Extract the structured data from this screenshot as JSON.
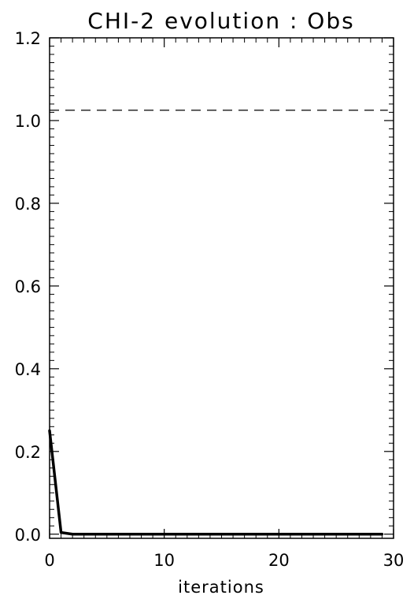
{
  "chart_data": {
    "type": "line",
    "title": "CHI-2 evolution : Obs",
    "xlabel": "iterations",
    "ylabel": "",
    "xlim": [
      0,
      30
    ],
    "ylim": [
      -0.01,
      1.2
    ],
    "x_ticks": [
      0,
      10,
      20,
      30
    ],
    "x_tick_labels": [
      "0",
      "10",
      "20",
      "30"
    ],
    "y_ticks": [
      0.0,
      0.2,
      0.4,
      0.6,
      0.8,
      1.0,
      1.2
    ],
    "y_tick_labels": [
      "0.0",
      "0.2",
      "0.4",
      "0.6",
      "0.8",
      "1.0",
      "1.2"
    ],
    "grid": false,
    "series": [
      {
        "style": "solid",
        "x": [
          0,
          1,
          2,
          3,
          4,
          5,
          6,
          7,
          8,
          9,
          10,
          11,
          12,
          13,
          14,
          15,
          16,
          17,
          18,
          19,
          20,
          21,
          22,
          23,
          24,
          25,
          26,
          27,
          28,
          29
        ],
        "y": [
          0.25,
          0.004,
          0.0,
          0.0,
          0.0,
          0.0,
          0.0,
          0.0,
          0.0,
          0.0,
          0.0,
          0.0,
          0.0,
          0.0,
          0.0,
          0.0,
          0.0,
          0.0,
          0.0,
          0.0,
          0.0,
          0.0,
          0.0,
          0.0,
          0.0,
          0.0,
          0.0,
          0.0,
          0.0,
          0.0
        ]
      }
    ],
    "reference_line": {
      "style": "dashed",
      "y": 1.025,
      "x": [
        0,
        29.5
      ]
    }
  }
}
